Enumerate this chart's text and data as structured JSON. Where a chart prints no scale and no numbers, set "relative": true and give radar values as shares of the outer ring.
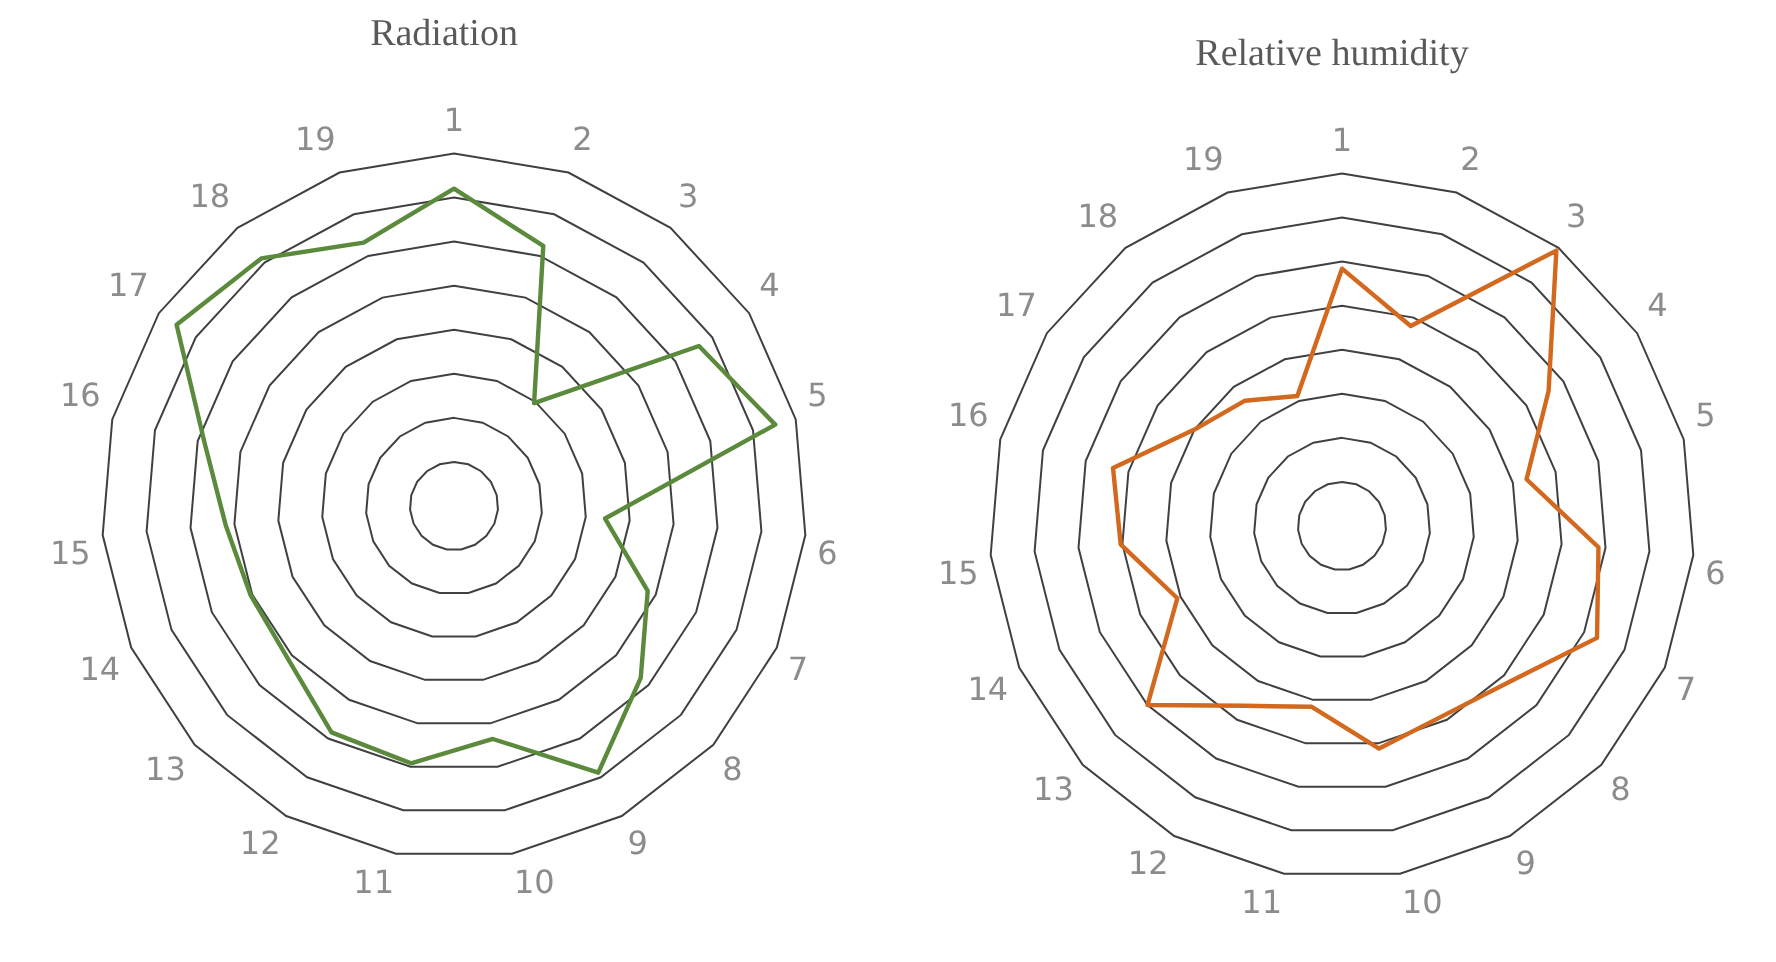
{
  "chart_data": [
    {
      "type": "radar",
      "title": "Radiation",
      "relative": true,
      "grid": true,
      "legend": false,
      "marker": "none",
      "line_style": "solid",
      "categories": [
        "1",
        "2",
        "3",
        "4",
        "5",
        "6",
        "7",
        "8",
        "9",
        "10",
        "11",
        "12",
        "13",
        "14",
        "15",
        "16",
        "17",
        "18",
        "19"
      ],
      "series": [
        {
          "color": "#5b8a3c",
          "values": [
            0.9,
            0.78,
            0.37,
            0.83,
            0.94,
            0.43,
            0.6,
            0.72,
            0.86,
            0.67,
            0.74,
            0.73,
            0.64,
            0.63,
            0.65,
            0.73,
            0.94,
            0.89,
            0.79
          ]
        }
      ]
    },
    {
      "type": "radar",
      "title": "Relative humidity",
      "relative": true,
      "grid": true,
      "legend": false,
      "marker": "none",
      "line_style": "solid",
      "categories": [
        "1",
        "2",
        "3",
        "4",
        "5",
        "6",
        "7",
        "8",
        "9",
        "10",
        "11",
        "12",
        "13",
        "14",
        "15",
        "16",
        "17",
        "18",
        "19"
      ],
      "series": [
        {
          "color": "#d2691e",
          "values": [
            0.73,
            0.6,
            0.99,
            0.7,
            0.54,
            0.73,
            0.79,
            0.65,
            0.61,
            0.64,
            0.52,
            0.58,
            0.75,
            0.51,
            0.63,
            0.67,
            0.5,
            0.45,
            0.39
          ]
        }
      ]
    }
  ]
}
